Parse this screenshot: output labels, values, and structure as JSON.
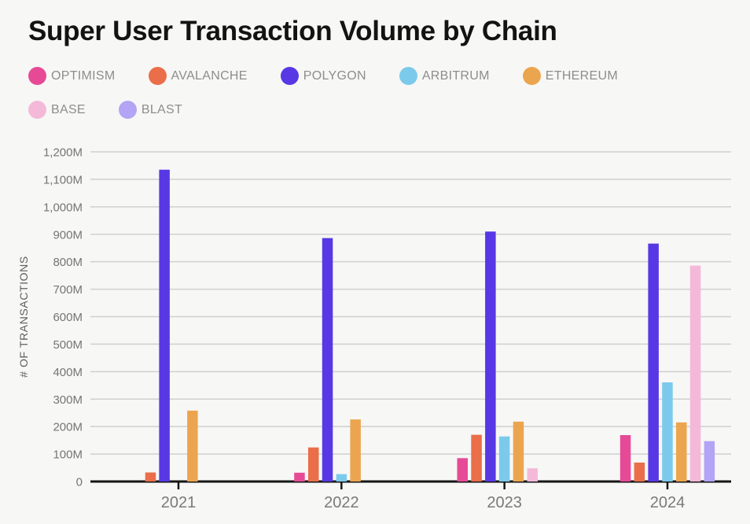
{
  "title": "Super User Transaction Volume by Chain",
  "y_axis": {
    "title": "# OF TRANSACTIONS",
    "tick_labels": [
      "0",
      "100M",
      "200M",
      "300M",
      "400M",
      "500M",
      "600M",
      "700M",
      "800M",
      "900M",
      "1,000M",
      "1,100M",
      "1,200M"
    ]
  },
  "x_axis": {
    "categories": [
      "2021",
      "2022",
      "2023",
      "2024"
    ]
  },
  "chart_data": {
    "type": "bar",
    "title": "Super User Transaction Volume by Chain",
    "categories": [
      "2021",
      "2022",
      "2023",
      "2024"
    ],
    "series": [
      {
        "name": "OPTIMISM",
        "color": "#E64A97",
        "values": [
          null,
          32,
          85,
          169
        ]
      },
      {
        "name": "AVALANCHE",
        "color": "#EA6E49",
        "values": [
          33,
          124,
          170,
          69
        ]
      },
      {
        "name": "POLYGON",
        "color": "#5738E4",
        "values": [
          1135,
          886,
          910,
          866
        ]
      },
      {
        "name": "ARBITRUM",
        "color": "#7CCAEB",
        "values": [
          null,
          27,
          164,
          361
        ]
      },
      {
        "name": "ETHEREUM",
        "color": "#ECA54F",
        "values": [
          258,
          226,
          218,
          215
        ]
      },
      {
        "name": "BASE",
        "color": "#F4B9D8",
        "values": [
          null,
          null,
          48,
          786
        ]
      },
      {
        "name": "BLAST",
        "color": "#B3A4F5",
        "values": [
          null,
          null,
          null,
          147
        ]
      }
    ],
    "xlabel": "",
    "ylabel": "# OF TRANSACTIONS",
    "ylim": [
      0,
      1200
    ],
    "y_tick_step": 100,
    "unit": "M",
    "grid": true,
    "legend_position": "top"
  }
}
